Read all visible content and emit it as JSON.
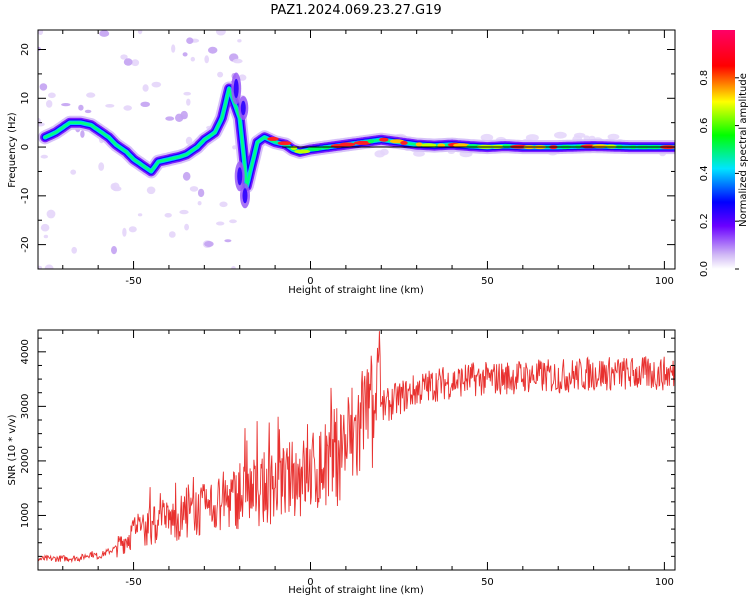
{
  "title": "PAZ1.2024.069.23.27.G19",
  "chart_data": [
    {
      "type": "heatmap",
      "xlabel": "Height of straight line (km)",
      "ylabel": "Frequency (Hz)",
      "xlim": [
        -77,
        103
      ],
      "ylim": [
        -25,
        24
      ],
      "xticks": [
        -50,
        0,
        50,
        100
      ],
      "yticks": [
        -20,
        -10,
        0,
        10,
        20
      ],
      "ridge": {
        "x": [
          -75,
          -72,
          -70,
          -68,
          -65,
          -62,
          -60,
          -57,
          -55,
          -52,
          -50,
          -47,
          -45,
          -43,
          -40,
          -37,
          -35,
          -32,
          -30,
          -27,
          -25,
          -23,
          -20,
          -18,
          -15,
          -13,
          -10,
          -7,
          -5,
          -3,
          0,
          5,
          10,
          15,
          20,
          25,
          30,
          35,
          40,
          45,
          50,
          55,
          60,
          70,
          80,
          90,
          100,
          103
        ],
        "y": [
          2,
          3,
          4,
          5,
          5,
          4.5,
          3.5,
          2,
          0.5,
          -1,
          -2.5,
          -4,
          -5,
          -3,
          -2.5,
          -2,
          -1.5,
          0,
          1.5,
          3,
          6,
          12,
          6,
          -8,
          1,
          2,
          1,
          0.5,
          -0.5,
          -1,
          -0.5,
          0,
          0.5,
          1,
          1.5,
          1,
          0.5,
          0.3,
          0.5,
          0.2,
          0,
          0.2,
          0,
          0,
          0.2,
          0,
          0,
          0
        ]
      },
      "colorbar": {
        "label": "Normalized spectral amplitude",
        "range": [
          0,
          1
        ],
        "ticks": [
          0.0,
          0.2,
          0.4,
          0.6,
          0.8
        ],
        "colormap": [
          "#ffffff",
          "#d0b8f5",
          "#6a00ff",
          "#0000ff",
          "#00e5ff",
          "#00ff00",
          "#ffff00",
          "#ff0000",
          "#ff0066"
        ]
      }
    },
    {
      "type": "line",
      "xlabel": "Height of straight line (km)",
      "ylabel": "SNR (10 * v/v)",
      "xlim": [
        -77,
        103
      ],
      "ylim": [
        0,
        4400
      ],
      "xticks": [
        -50,
        0,
        50,
        100
      ],
      "yticks": [
        1000,
        2000,
        3000,
        4000
      ],
      "color": "#e8312f",
      "trend": {
        "x": [
          -77,
          -65,
          -62,
          -60,
          -55,
          -50,
          -45,
          -40,
          -35,
          -30,
          -25,
          -20,
          -15,
          -10,
          -5,
          0,
          5,
          10,
          15,
          20,
          25,
          30,
          35,
          40,
          45,
          50,
          60,
          70,
          80,
          90,
          100,
          103
        ],
        "y": [
          200,
          220,
          300,
          250,
          400,
          700,
          800,
          900,
          1000,
          1100,
          1250,
          1350,
          1450,
          1550,
          1650,
          1750,
          1950,
          2300,
          2650,
          2950,
          3150,
          3300,
          3400,
          3450,
          3500,
          3500,
          3550,
          3550,
          3600,
          3600,
          3600,
          3600
        ]
      }
    }
  ]
}
